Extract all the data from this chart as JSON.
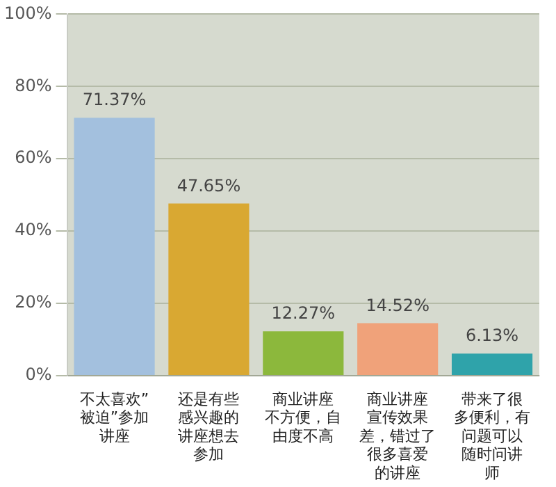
{
  "chart_data": {
    "type": "bar",
    "categories": [
      "不太喜欢”被迫”参加讲座",
      "还是有些感兴趣的讲座想去参加",
      "商业讲座不方便，自由度不高",
      "商业讲座宣传效果差，错过了很多喜爱的讲座",
      "带来了很多便利，有问题可以随时问讲师"
    ],
    "values": [
      71.37,
      47.65,
      12.27,
      14.52,
      6.13
    ],
    "colors": [
      "#a3c0de",
      "#d9a832",
      "#8cb83c",
      "#f0a27a",
      "#2fa3aa"
    ],
    "value_labels": [
      "71.37%",
      "47.65%",
      "12.27%",
      "14.52%",
      "6.13%"
    ],
    "ylim": [
      0,
      100
    ],
    "yticks": [
      {
        "value": 0,
        "label": "0%"
      },
      {
        "value": 20,
        "label": "20%"
      },
      {
        "value": 40,
        "label": "40%"
      },
      {
        "value": 60,
        "label": "60%"
      },
      {
        "value": 80,
        "label": "80%"
      },
      {
        "value": 100,
        "label": "100%"
      }
    ],
    "grid": "y",
    "legend": false
  }
}
